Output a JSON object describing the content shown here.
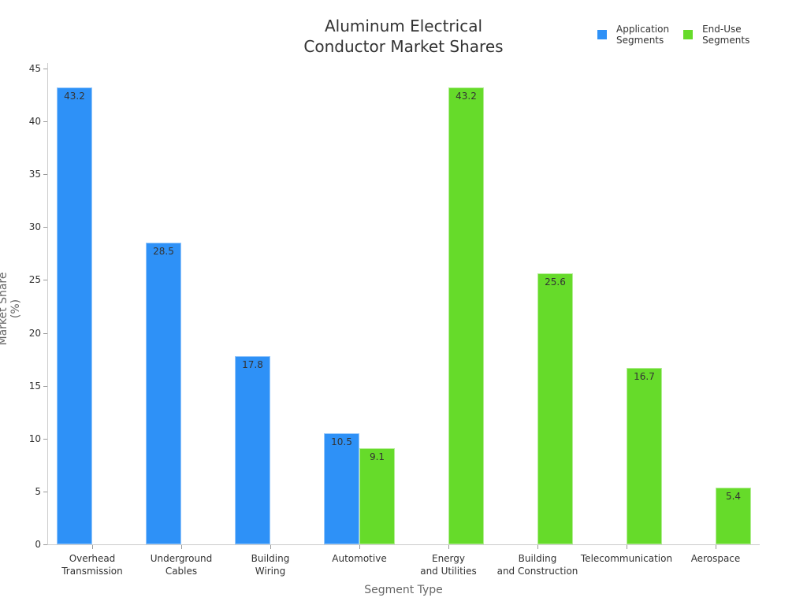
{
  "chart_data": {
    "type": "bar",
    "title": "Aluminum Electrical\nConductor Market Shares",
    "xlabel": "Segment Type",
    "ylabel": "Market Share (%)",
    "ylim": [
      0,
      45
    ],
    "yticks": [
      0,
      5,
      10,
      15,
      20,
      25,
      30,
      35,
      40,
      45
    ],
    "grid": false,
    "legend_position": "top-right",
    "categories": [
      "Overhead\nTransmission",
      "Underground\nCables",
      "Building\nWiring",
      "Automotive",
      "Energy\nand Utilities",
      "Building\nand Construction",
      "Telecommunication",
      "Aerospace"
    ],
    "series": [
      {
        "name": "Application\nSegments",
        "color": "#2e91f7",
        "values": [
          43.2,
          28.5,
          17.8,
          10.5,
          null,
          null,
          null,
          null
        ]
      },
      {
        "name": "End-Use\nSegments",
        "color": "#66db2a",
        "values": [
          null,
          null,
          null,
          9.1,
          43.2,
          25.6,
          16.7,
          5.4
        ]
      }
    ]
  },
  "legend": {
    "items": [
      {
        "label": "Application\nSegments",
        "color": "#2e91f7"
      },
      {
        "label": "End-Use\nSegments",
        "color": "#66db2a"
      }
    ]
  }
}
